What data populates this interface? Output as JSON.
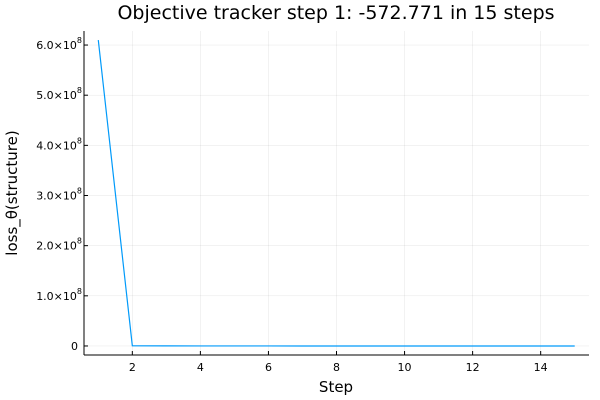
{
  "chart_data": {
    "type": "line",
    "title": "Objective tracker step 1: -572.771 in 15 steps",
    "xlabel": "Step",
    "ylabel": "loss_θ(structure)",
    "xlim": [
      0.58,
      15.42
    ],
    "ylim": [
      -18000000,
      628000000
    ],
    "grid": true,
    "legend": "none",
    "line_color": "#009AFA",
    "x_ticks": [
      {
        "value": 2,
        "label": "2"
      },
      {
        "value": 4,
        "label": "4"
      },
      {
        "value": 6,
        "label": "6"
      },
      {
        "value": 8,
        "label": "8"
      },
      {
        "value": 10,
        "label": "10"
      },
      {
        "value": 12,
        "label": "12"
      },
      {
        "value": 14,
        "label": "14"
      }
    ],
    "y_ticks": [
      {
        "value": 0,
        "label": "0",
        "exp": ""
      },
      {
        "value": 100000000,
        "label": "1.0×10",
        "exp": "8"
      },
      {
        "value": 200000000,
        "label": "2.0×10",
        "exp": "8"
      },
      {
        "value": 300000000,
        "label": "3.0×10",
        "exp": "8"
      },
      {
        "value": 400000000,
        "label": "4.0×10",
        "exp": "8"
      },
      {
        "value": 500000000,
        "label": "5.0×10",
        "exp": "8"
      },
      {
        "value": 600000000,
        "label": "6.0×10",
        "exp": "8"
      }
    ],
    "series": [
      {
        "x": [
          1,
          2,
          3,
          4,
          5,
          6,
          7,
          8,
          9,
          10,
          11,
          12,
          13,
          14,
          15
        ],
        "y": [
          610000000,
          500000,
          200000,
          100000,
          50000,
          20000,
          10000,
          5000,
          3000,
          2000,
          1500,
          1000,
          800,
          700,
          -572.771
        ]
      }
    ]
  }
}
